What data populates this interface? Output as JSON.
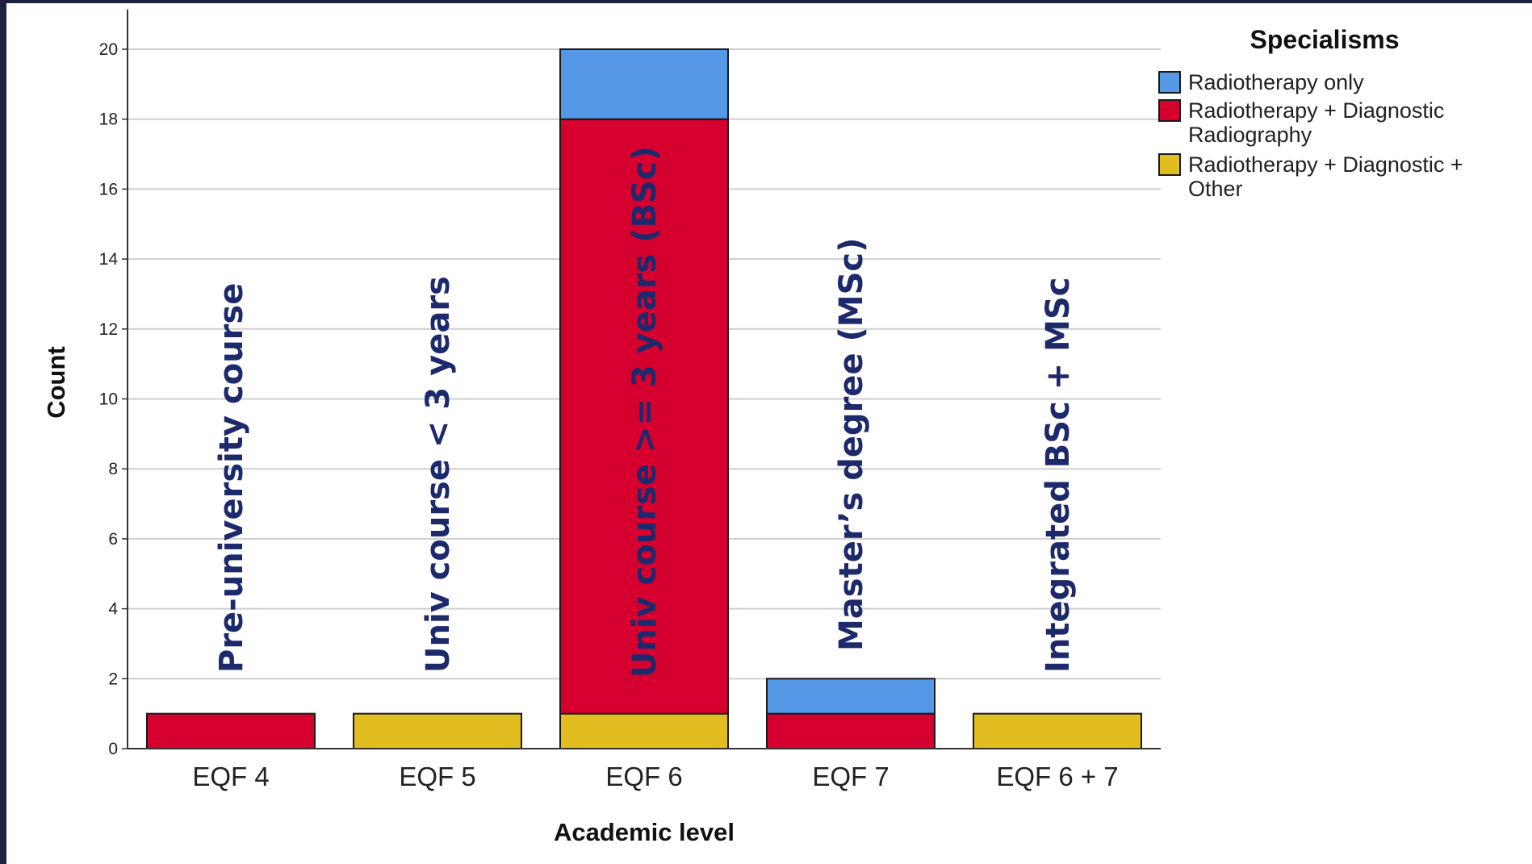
{
  "chart_data": {
    "type": "bar",
    "stacked": true,
    "categories": [
      "EQF 4",
      "EQF 5",
      "EQF 6",
      "EQF 7",
      "EQF 6 + 7"
    ],
    "annotations": [
      "Pre-university course",
      "Univ course < 3 years",
      "Univ course >= 3 years (BSc)",
      "Master’s degree (MSc)",
      "Integrated BSc + MSc"
    ],
    "series": [
      {
        "name": "Radiotherapy + Diagnostic + Other",
        "color": "#e2bd1f",
        "values": [
          0,
          1,
          1,
          0,
          1
        ]
      },
      {
        "name": "Radiotherapy + Diagnostic Radiography",
        "color": "#d6002f",
        "values": [
          1,
          0,
          17,
          1,
          0
        ]
      },
      {
        "name": "Radiotherapy only",
        "color": "#5598e5",
        "values": [
          0,
          0,
          2,
          1,
          0
        ]
      }
    ],
    "legend": {
      "title": "Specialisms",
      "placement": "top-right",
      "entries": [
        {
          "lines": [
            "Radiotherapy only"
          ],
          "color": "#5598e5"
        },
        {
          "lines": [
            "Radiotherapy + Diagnostic",
            "Radiography"
          ],
          "color": "#d6002f"
        },
        {
          "lines": [
            "Radiotherapy + Diagnostic +",
            "Other"
          ],
          "color": "#e2bd1f"
        }
      ]
    },
    "xlabel": "Academic level",
    "ylabel": "Count",
    "ylim": [
      0,
      21
    ],
    "yticks": [
      0,
      2,
      4,
      6,
      8,
      10,
      12,
      14,
      16,
      18,
      20
    ],
    "grid": true
  }
}
